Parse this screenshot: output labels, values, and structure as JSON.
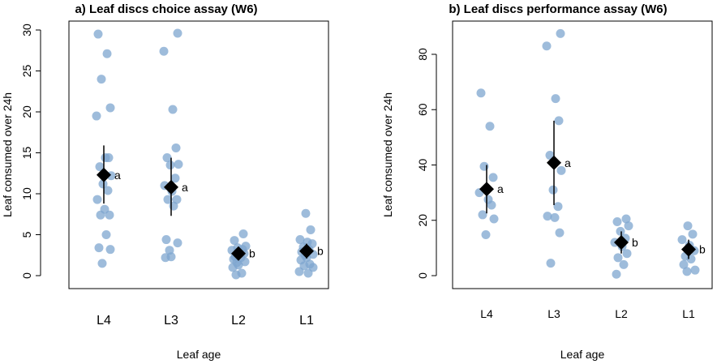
{
  "chart_data": [
    {
      "type": "scatter",
      "title": "a) Leaf discs choice assay (W6)",
      "xlabel": "Leaf age",
      "ylabel": "Leaf consumed over 24h",
      "categories": [
        "L4",
        "L3",
        "L2",
        "L1"
      ],
      "ylim": [
        0,
        30
      ],
      "yticks": [
        0,
        5,
        10,
        15,
        20,
        25,
        30
      ],
      "point_color": "#7ea6cf",
      "mean_color": "#000000",
      "points": [
        [
          29.5,
          27.1,
          24.0,
          20.5,
          19.5,
          14.4,
          14.4,
          13.3,
          12.2,
          11.2,
          10.4,
          9.3,
          8.1,
          7.4,
          7.4,
          5.0,
          3.4,
          3.2,
          1.5
        ],
        [
          29.6,
          27.4,
          20.3,
          15.6,
          14.4,
          13.6,
          13.5,
          11.9,
          11.0,
          10.3,
          9.3,
          9.3,
          8.5,
          4.4,
          4.0,
          3.1,
          2.3,
          2.2
        ],
        [
          5.1,
          4.3,
          3.6,
          3.4,
          3.2,
          3.1,
          2.9,
          2.7,
          2.3,
          2.2,
          2.0,
          1.7,
          1.6,
          1.3,
          1.0,
          0.3,
          0.1
        ],
        [
          7.6,
          5.6,
          4.4,
          4.1,
          3.9,
          3.5,
          3.2,
          2.9,
          2.6,
          2.5,
          2.2,
          1.9,
          1.4,
          1.2,
          1.0,
          0.5,
          0.3
        ]
      ],
      "means": [
        12.3,
        10.8,
        2.7,
        3.0
      ],
      "ci_low": [
        8.8,
        7.3,
        1.9,
        2.1
      ],
      "ci_high": [
        15.9,
        14.4,
        3.5,
        3.9
      ],
      "group_labels": [
        "a",
        "a",
        "b",
        "b"
      ]
    },
    {
      "type": "scatter",
      "title": "b) Leaf discs performance assay (W6)",
      "xlabel": "Leaf age",
      "ylabel": "Leaf consumed over 24h",
      "categories": [
        "L4",
        "L3",
        "L2",
        "L1"
      ],
      "ylim": [
        0,
        90
      ],
      "yticks": [
        0,
        20,
        40,
        60,
        80
      ],
      "point_color": "#7ea6cf",
      "mean_color": "#000000",
      "points": [
        [
          66.0,
          54.0,
          39.5,
          35.5,
          30.0,
          27.5,
          25.5,
          22.0,
          20.5,
          14.8
        ],
        [
          87.5,
          83.0,
          64.0,
          56.0,
          43.5,
          38.0,
          31.0,
          25.0,
          21.5,
          21.0,
          15.5,
          4.5
        ],
        [
          20.5,
          19.5,
          18.0,
          16.0,
          13.5,
          12.0,
          10.5,
          8.0,
          6.5,
          4.0,
          0.5
        ],
        [
          18.0,
          15.0,
          13.0,
          11.0,
          9.0,
          7.0,
          6.0,
          4.0,
          2.0,
          1.5
        ]
      ],
      "means": [
        31.3,
        40.8,
        12.0,
        9.5
      ],
      "ci_low": [
        22.5,
        25.5,
        8.0,
        6.0
      ],
      "ci_high": [
        40.0,
        56.0,
        16.0,
        13.0
      ],
      "group_labels": [
        "a",
        "a",
        "b",
        "b"
      ]
    }
  ]
}
